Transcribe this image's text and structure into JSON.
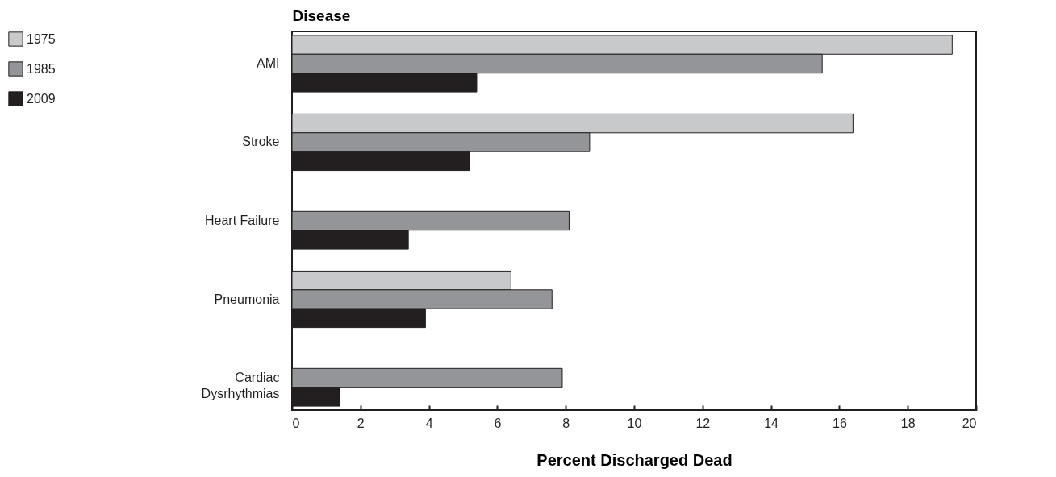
{
  "chart_data": {
    "type": "bar",
    "orientation": "horizontal",
    "ylabel": "Disease",
    "xlabel": "Percent Discharged Dead",
    "categories": [
      "AMI",
      "Stroke",
      "Heart Failure",
      "Pneumonia",
      "Cardiac Dysrhythmias"
    ],
    "series": [
      {
        "name": "1975",
        "color": "#c8c9cb",
        "values": [
          19.3,
          16.4,
          null,
          6.4,
          null
        ]
      },
      {
        "name": "1985",
        "color": "#939598",
        "values": [
          15.5,
          8.7,
          8.1,
          7.6,
          7.9
        ]
      },
      {
        "name": "2009",
        "color": "#231f20",
        "values": [
          5.4,
          5.2,
          3.4,
          3.9,
          1.4
        ]
      }
    ],
    "xlim": [
      0,
      20
    ],
    "xticks": [
      0,
      2,
      4,
      6,
      8,
      10,
      12,
      14,
      16,
      18,
      20
    ],
    "grid": false,
    "legend": "left"
  }
}
